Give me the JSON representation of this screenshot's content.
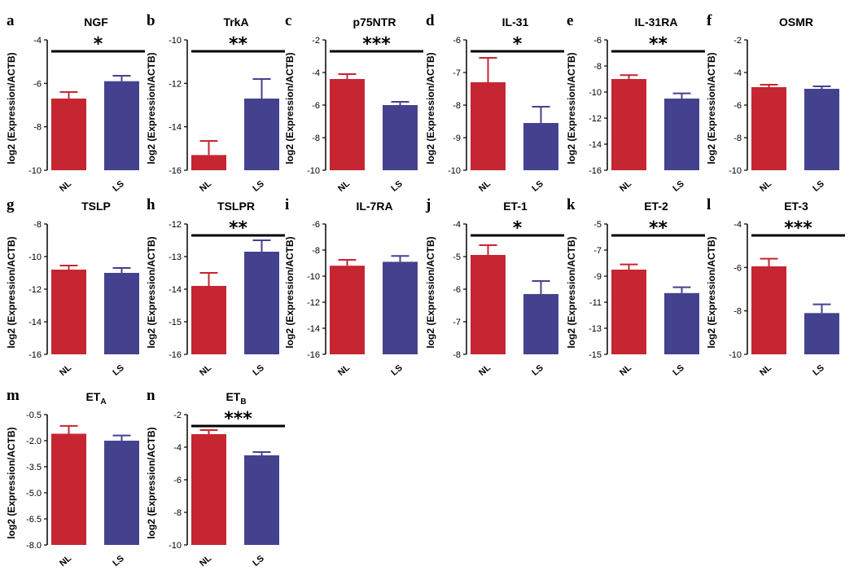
{
  "colors": {
    "NL": "#c62631",
    "LS": "#44428f",
    "axis": "#000000"
  },
  "chart_data": [
    {
      "letter": "a",
      "title": "NGF",
      "sub": "",
      "type": "bar",
      "ylabel": "log2 (Expression/ACTB)",
      "categories": [
        "NL",
        "LS"
      ],
      "ylim": [
        -10,
        -4
      ],
      "ticks": [
        "-4",
        "-6",
        "-8",
        "-10"
      ],
      "values": [
        -6.7,
        -5.9
      ],
      "errors": [
        0.3,
        0.25
      ],
      "significance": "*"
    },
    {
      "letter": "b",
      "title": "TrkA",
      "sub": "",
      "type": "bar",
      "ylabel": "log2 (Expression/ACTB)",
      "categories": [
        "NL",
        "LS"
      ],
      "ylim": [
        -16,
        -10
      ],
      "ticks": [
        "-10",
        "-12",
        "-14",
        "-16"
      ],
      "values": [
        -15.3,
        -12.7
      ],
      "errors": [
        0.65,
        0.9
      ],
      "significance": "**"
    },
    {
      "letter": "c",
      "title": "p75NTR",
      "sub": "",
      "type": "bar",
      "ylabel": "log2 (Expression/ACTB)",
      "categories": [
        "NL",
        "LS"
      ],
      "ylim": [
        -10,
        -2
      ],
      "ticks": [
        "-2",
        "-4",
        "-6",
        "-8",
        "-10"
      ],
      "values": [
        -4.4,
        -6.0
      ],
      "errors": [
        0.3,
        0.2
      ],
      "significance": "***"
    },
    {
      "letter": "d",
      "title": "IL-31",
      "sub": "",
      "type": "bar",
      "ylabel": "log2 (Expression/ACTB)",
      "categories": [
        "NL",
        "LS"
      ],
      "ylim": [
        -10,
        -6
      ],
      "ticks": [
        "-6",
        "-7",
        "-8",
        "-9",
        "-10"
      ],
      "values": [
        -7.3,
        -8.55
      ],
      "errors": [
        0.75,
        0.5
      ],
      "significance": "*"
    },
    {
      "letter": "e",
      "title": "IL-31RA",
      "sub": "",
      "type": "bar",
      "ylabel": "log2 (Expression/ACTB)",
      "categories": [
        "NL",
        "LS"
      ],
      "ylim": [
        -16,
        -6
      ],
      "ticks": [
        "-6",
        "-8",
        "-10",
        "-12",
        "-14",
        "-16"
      ],
      "values": [
        -9.0,
        -10.5
      ],
      "errors": [
        0.3,
        0.4
      ],
      "significance": "**"
    },
    {
      "letter": "f",
      "title": "OSMR",
      "sub": "",
      "type": "bar",
      "ylabel": "log2 (Expression/ACTB)",
      "categories": [
        "NL",
        "LS"
      ],
      "ylim": [
        -10,
        -2
      ],
      "ticks": [
        "-2",
        "-4",
        "-6",
        "-8",
        "-10"
      ],
      "values": [
        -4.9,
        -5.0
      ],
      "errors": [
        0.15,
        0.15
      ],
      "significance": ""
    },
    {
      "letter": "g",
      "title": "TSLP",
      "sub": "",
      "type": "bar",
      "ylabel": "log2 (Expression/ACTB)",
      "categories": [
        "NL",
        "LS"
      ],
      "ylim": [
        -16,
        -8
      ],
      "ticks": [
        "-8",
        "-10",
        "-12",
        "-14",
        "-16"
      ],
      "values": [
        -10.8,
        -11.0
      ],
      "errors": [
        0.25,
        0.3
      ],
      "significance": ""
    },
    {
      "letter": "h",
      "title": "TSLPR",
      "sub": "",
      "type": "bar",
      "ylabel": "log2 (Expression/ACTB)",
      "categories": [
        "NL",
        "LS"
      ],
      "ylim": [
        -16,
        -12
      ],
      "ticks": [
        "-12",
        "-13",
        "-14",
        "-15",
        "-16"
      ],
      "values": [
        -13.9,
        -12.85
      ],
      "errors": [
        0.4,
        0.35
      ],
      "significance": "**"
    },
    {
      "letter": "i",
      "title": "IL-7RA",
      "sub": "",
      "type": "bar",
      "ylabel": "log2 (Expression/ACTB)",
      "categories": [
        "NL",
        "LS"
      ],
      "ylim": [
        -16,
        -6
      ],
      "ticks": [
        "-6",
        "-8",
        "-10",
        "-12",
        "-14",
        "-16"
      ],
      "values": [
        -9.2,
        -8.9
      ],
      "errors": [
        0.45,
        0.45
      ],
      "significance": ""
    },
    {
      "letter": "j",
      "title": "ET-1",
      "sub": "",
      "type": "bar",
      "ylabel": "log2 (Expression/ACTB)",
      "categories": [
        "NL",
        "LS"
      ],
      "ylim": [
        -8,
        -4
      ],
      "ticks": [
        "-4",
        "-5",
        "-6",
        "-7",
        "-8"
      ],
      "values": [
        -4.95,
        -6.15
      ],
      "errors": [
        0.3,
        0.4
      ],
      "significance": "*"
    },
    {
      "letter": "k",
      "title": "ET-2",
      "sub": "",
      "type": "bar",
      "ylabel": "log2 (Expression/ACTB)",
      "categories": [
        "NL",
        "LS"
      ],
      "ylim": [
        -15,
        -5
      ],
      "ticks": [
        "-5",
        "-7",
        "-9",
        "-11",
        "-13",
        "-15"
      ],
      "values": [
        -8.5,
        -10.3
      ],
      "errors": [
        0.4,
        0.45
      ],
      "significance": "**"
    },
    {
      "letter": "l",
      "title": "ET-3",
      "sub": "",
      "type": "bar",
      "ylabel": "log2 (Expression/ACTB)",
      "categories": [
        "NL",
        "LS"
      ],
      "ylim": [
        -10,
        -4
      ],
      "ticks": [
        "-4",
        "-6",
        "-8",
        "-10"
      ],
      "values": [
        -5.95,
        -8.1
      ],
      "errors": [
        0.35,
        0.4
      ],
      "significance": "***"
    },
    {
      "letter": "m",
      "title": "ET",
      "sub": "A",
      "type": "bar",
      "ylabel": "log2 (Expression/ACTB)",
      "categories": [
        "NL",
        "LS"
      ],
      "ylim": [
        -8.0,
        -0.5
      ],
      "ticks": [
        "-0.5",
        "-2.0",
        "-3.5",
        "-5.0",
        "-6.5",
        "-8.0"
      ],
      "values": [
        -1.6,
        -2.0
      ],
      "errors": [
        0.45,
        0.3
      ],
      "significance": ""
    },
    {
      "letter": "n",
      "title": "ET",
      "sub": "B",
      "type": "bar",
      "ylabel": "log2 (Expression/ACTB)",
      "categories": [
        "NL",
        "LS"
      ],
      "ylim": [
        -10,
        -2
      ],
      "ticks": [
        "-2",
        "-4",
        "-6",
        "-8",
        "-10"
      ],
      "values": [
        -3.2,
        -4.5
      ],
      "errors": [
        0.25,
        0.2
      ],
      "significance": "***"
    }
  ]
}
